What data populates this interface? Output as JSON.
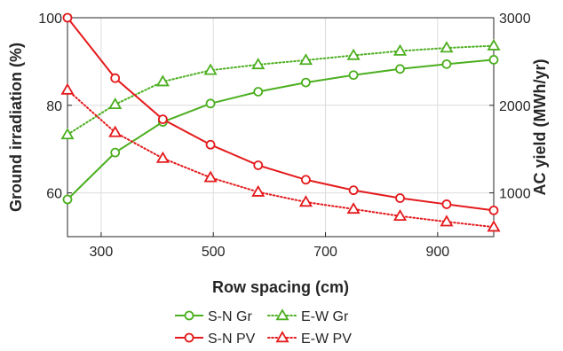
{
  "chart_data": {
    "type": "line",
    "xlabel": "Row spacing (cm)",
    "ylabel_left": "Ground irradiation (%)",
    "ylabel_right": "AC yield (MWh/yr)",
    "xlim": [
      240,
      1000
    ],
    "ylim_left": [
      50,
      100
    ],
    "ylim_right": [
      500,
      3000
    ],
    "x_ticks": [
      300,
      500,
      700,
      900
    ],
    "y_ticks_left": [
      60,
      80,
      100
    ],
    "y_ticks_right": [
      1000,
      2000,
      3000
    ],
    "grid": true,
    "legend_position": "bottom-center",
    "x": [
      240,
      325,
      410,
      495,
      580,
      665,
      750,
      833,
      916,
      1000
    ],
    "series": [
      {
        "name": "S-N Gr",
        "axis": "left",
        "color": "#4caf20",
        "marker": "circle",
        "style": "solid",
        "values": [
          58.5,
          69.2,
          76.2,
          80.4,
          83.1,
          85.2,
          86.9,
          88.3,
          89.4,
          90.4
        ]
      },
      {
        "name": "E-W Gr",
        "axis": "left",
        "color": "#4caf20",
        "marker": "triangle",
        "style": "dotted",
        "values": [
          73.3,
          80.2,
          85.4,
          88.0,
          89.3,
          90.3,
          91.4,
          92.4,
          93.1,
          93.6
        ]
      },
      {
        "name": "S-N PV",
        "axis": "right",
        "color": "#e41a1c",
        "marker": "circle",
        "style": "solid",
        "values": [
          3000,
          2310,
          1840,
          1550,
          1315,
          1150,
          1030,
          940,
          870,
          800
        ]
      },
      {
        "name": "E-W PV",
        "axis": "right",
        "color": "#e41a1c",
        "marker": "triangle",
        "style": "dotted",
        "values": [
          2175,
          1690,
          1395,
          1175,
          1010,
          895,
          815,
          735,
          670,
          610
        ]
      }
    ]
  }
}
